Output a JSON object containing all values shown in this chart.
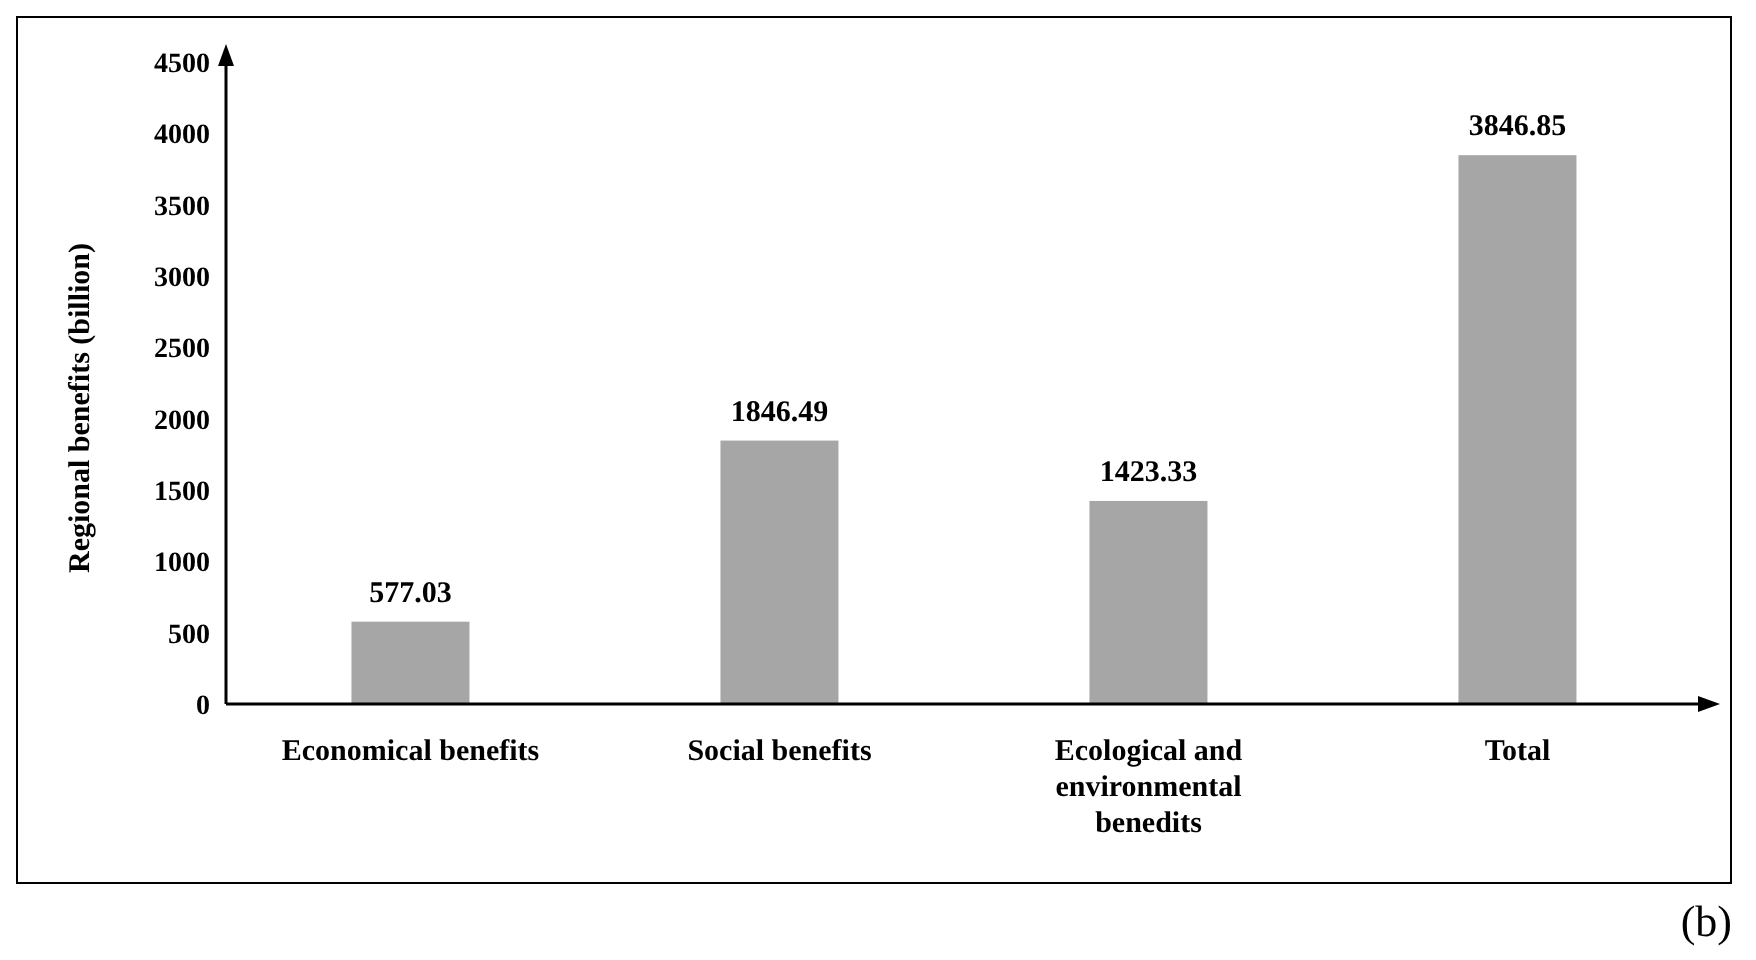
{
  "chart_data": {
    "type": "bar",
    "ylabel": "Regional benefits (billion)",
    "categories": [
      "Economical benefits",
      "Social benefits",
      "Ecological and environmental benedits",
      "Total"
    ],
    "values": [
      577.03,
      1846.49,
      1423.33,
      3846.85
    ],
    "color": "#a6a6a6",
    "ylim": [
      0,
      4500
    ],
    "yticks": [
      0,
      500,
      1000,
      1500,
      2000,
      2500,
      3000,
      3500,
      4000,
      4500
    ],
    "data_labels": true,
    "grid": false,
    "legend": false,
    "annotations": [
      "(b)"
    ]
  }
}
